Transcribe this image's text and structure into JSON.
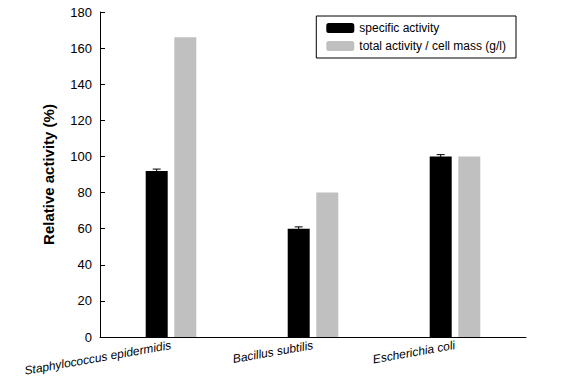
{
  "chart_data": {
    "type": "bar",
    "categories": [
      "Staphylococcus epidermidis",
      "Bacillus subtilis",
      "Escherichia coli"
    ],
    "series": [
      {
        "name": "specific activity",
        "color": "#000000",
        "values": [
          92,
          60,
          100
        ],
        "errors": [
          1,
          1,
          1
        ]
      },
      {
        "name": "total activity / cell mass (g/l)",
        "color": "#c0c0c0",
        "values": [
          166,
          80,
          100
        ]
      }
    ],
    "y_label": "Relative activity (%)",
    "ylim": [
      0,
      180
    ],
    "yticks": [
      0,
      20,
      40,
      60,
      80,
      100,
      120,
      140,
      160,
      180
    ],
    "grid": false,
    "legend": "upper right"
  }
}
